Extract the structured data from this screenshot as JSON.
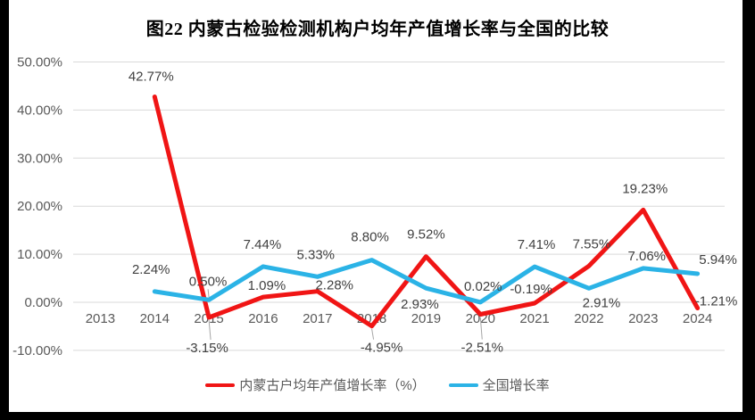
{
  "page": {
    "title": "图22 内蒙古检验检测机构户均年产值增长率与全国的比较"
  },
  "colors": {
    "page_bg": "#FFFFFF",
    "frame": "#000000",
    "grid": "#D9D9D9",
    "axis_text": "#595959",
    "data_label_text": "#404040",
    "leader_line": "#A6A6A6",
    "series_red": "#F01515",
    "series_blue": "#2BB3E6"
  },
  "chart_data": {
    "type": "line",
    "title": "图22 内蒙古检验检测机构户均年产值增长率与全国的比较",
    "xlabel": "",
    "ylabel": "",
    "grid": true,
    "legend_position": "bottom",
    "ylim": [
      -10,
      50
    ],
    "categories": [
      "2013",
      "2014",
      "2015",
      "2016",
      "2017",
      "2018",
      "2019",
      "2020",
      "2021",
      "2022",
      "2023",
      "2024"
    ],
    "y_ticks": [
      {
        "label": "50.00%",
        "value": 50
      },
      {
        "label": "40.00%",
        "value": 40
      },
      {
        "label": "30.00%",
        "value": 30
      },
      {
        "label": "20.00%",
        "value": 20
      },
      {
        "label": "10.00%",
        "value": 10
      },
      {
        "label": "0.00%",
        "value": 0
      },
      {
        "label": "-10.00%",
        "value": -10
      }
    ],
    "series": [
      {
        "name": "内蒙古户均年产值增长率（%）",
        "color": "#F01515",
        "points": [
          {
            "category": "2014",
            "value": 42.77,
            "label": "42.77%",
            "dx": -4,
            "dy": -23
          },
          {
            "category": "2015",
            "value": -3.15,
            "label": "-3.15%",
            "dx": -2,
            "dy": 34,
            "leader": true
          },
          {
            "category": "2016",
            "value": 1.09,
            "label": "1.09%",
            "dx": 4,
            "dy": -13
          },
          {
            "category": "2017",
            "value": 2.28,
            "label": "2.28%",
            "dx": 19,
            "dy": -7
          },
          {
            "category": "2018",
            "value": -4.95,
            "label": "-4.95%",
            "dx": 11,
            "dy": 24,
            "leader": true
          },
          {
            "category": "2019",
            "value": 9.52,
            "label": "9.52%",
            "dx": 0,
            "dy": -25
          },
          {
            "category": "2020",
            "value": -2.51,
            "label": "-2.51%",
            "dx": 2,
            "dy": 37,
            "leader": true
          },
          {
            "category": "2021",
            "value": -0.19,
            "label": "-0.19%",
            "dx": -4,
            "dy": -16
          },
          {
            "category": "2022",
            "value": 7.55,
            "label": "7.55%",
            "dx": 3,
            "dy": -25
          },
          {
            "category": "2023",
            "value": 19.23,
            "label": "19.23%",
            "dx": 2,
            "dy": -24
          },
          {
            "category": "2024",
            "value": -1.21,
            "label": "-1.21%",
            "dx": 21,
            "dy": -8
          }
        ]
      },
      {
        "name": "全国增长率",
        "color": "#2BB3E6",
        "points": [
          {
            "category": "2014",
            "value": 2.24,
            "label": "2.24%",
            "dx": -4,
            "dy": -25
          },
          {
            "category": "2015",
            "value": 0.5,
            "label": "0.50%",
            "dx": -1,
            "dy": -21,
            "leader": true
          },
          {
            "category": "2016",
            "value": 7.44,
            "label": "7.44%",
            "dx": -1,
            "dy": -25
          },
          {
            "category": "2017",
            "value": 5.33,
            "label": "5.33%",
            "dx": -2,
            "dy": -25
          },
          {
            "category": "2018",
            "value": 8.8,
            "label": "8.80%",
            "dx": -2,
            "dy": -26
          },
          {
            "category": "2019",
            "value": 2.93,
            "label": "2.93%",
            "dx": -7,
            "dy": 18
          },
          {
            "category": "2020",
            "value": 0.02,
            "label": "0.02%",
            "dx": 3,
            "dy": -18
          },
          {
            "category": "2021",
            "value": 7.41,
            "label": "7.41%",
            "dx": 2,
            "dy": -25
          },
          {
            "category": "2022",
            "value": 2.91,
            "label": "2.91%",
            "dx": 14,
            "dy": 16
          },
          {
            "category": "2023",
            "value": 7.06,
            "label": "7.06%",
            "dx": 4,
            "dy": -14
          },
          {
            "category": "2024",
            "value": 5.94,
            "label": "5.94%",
            "dx": 23,
            "dy": -16
          }
        ]
      }
    ]
  },
  "legend": {
    "items": [
      {
        "label": "内蒙古户均年产值增长率（%）",
        "color": "#F01515"
      },
      {
        "label": "全国增长率",
        "color": "#2BB3E6"
      }
    ]
  }
}
